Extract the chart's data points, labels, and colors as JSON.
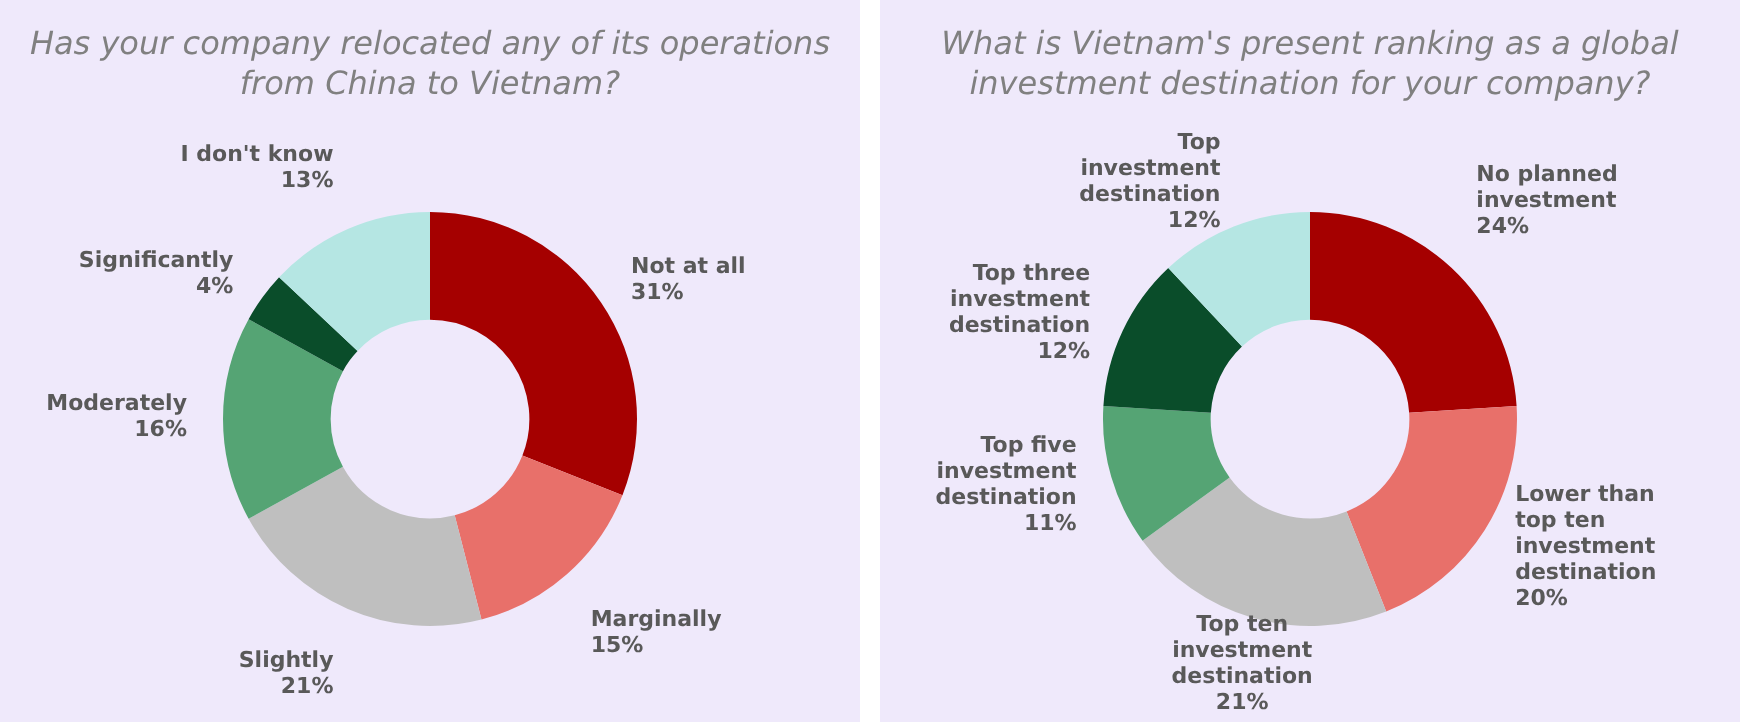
{
  "chart_data": [
    {
      "type": "donut",
      "title": "Has your company relocated any of its operations from China to Vietnam?",
      "categories": [
        "Not at all",
        "Marginally",
        "Slightly",
        "Moderately",
        "Significantly",
        "I don't know"
      ],
      "values": [
        31,
        15,
        21,
        16,
        4,
        13
      ],
      "value_labels": [
        "31%",
        "15%",
        "21%",
        "16%",
        "4%",
        "13%"
      ],
      "colors": [
        "#a50000",
        "#e8706a",
        "#bfbfbf",
        "#55a474",
        "#0a4d2a",
        "#b5e6e3"
      ],
      "legend": false
    },
    {
      "type": "donut",
      "title": "What is Vietnam's present ranking as a global investment destination for your company?",
      "categories": [
        "No planned investment",
        "Lower than top ten investment destination",
        "Top ten investment destination",
        "Top five investment destination",
        "Top three investment destination",
        "Top investment destination"
      ],
      "values": [
        24,
        20,
        21,
        11,
        12,
        12
      ],
      "value_labels": [
        "24%",
        "20%",
        "21%",
        "11%",
        "12%",
        "12%"
      ],
      "colors": [
        "#a50000",
        "#e8706a",
        "#bfbfbf",
        "#55a474",
        "#0a4d2a",
        "#b5e6e3"
      ],
      "legend": false
    }
  ]
}
